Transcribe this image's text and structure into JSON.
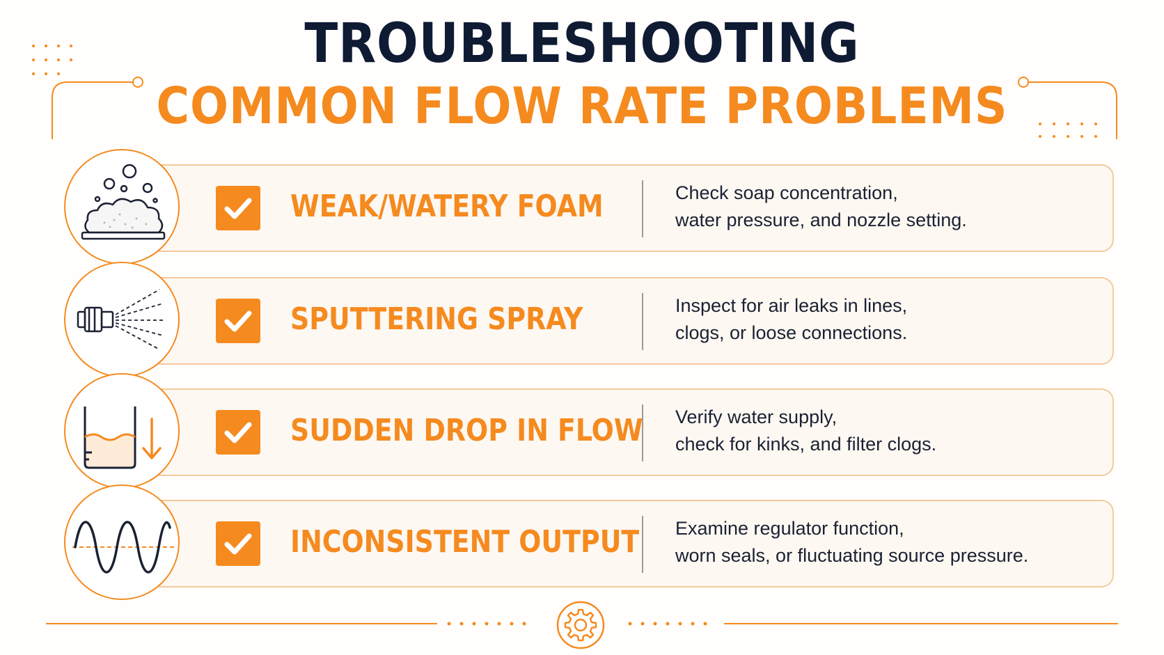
{
  "header": {
    "title": "TROUBLESHOOTING",
    "subtitle": "COMMON FLOW RATE PROBLEMS"
  },
  "colors": {
    "accent": "#f58a1f",
    "title": "#0f1b33",
    "card_bg": "#fdf8f2",
    "card_border": "#f6c99b"
  },
  "problems": [
    {
      "icon": "foam-icon",
      "label": "WEAK/WATERY FOAM",
      "description": [
        "Check soap concentration,",
        "water pressure, and nozzle setting."
      ]
    },
    {
      "icon": "spray-nozzle-icon",
      "label": "SPUTTERING SPRAY",
      "description": [
        "Inspect for air leaks in lines,",
        "clogs, or loose connections."
      ]
    },
    {
      "icon": "water-level-drop-icon",
      "label": "SUDDEN DROP IN FLOW",
      "description": [
        "Verify water supply,",
        "check for kinks, and filter clogs."
      ]
    },
    {
      "icon": "wave-signal-icon",
      "label": "INCONSISTENT OUTPUT",
      "description": [
        "Examine regulator function,",
        "worn seals, or fluctuating source pressure."
      ]
    }
  ],
  "footer": {
    "icon": "gear-icon"
  }
}
